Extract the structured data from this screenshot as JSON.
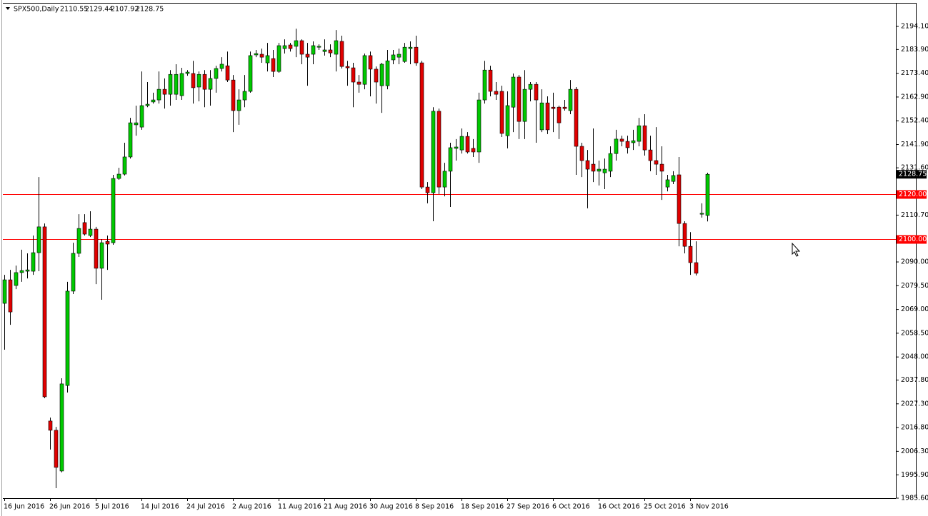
{
  "chart_data": {
    "type": "candlestick",
    "symbol": "SPX500,Daily",
    "categories": [
      "16 Jun 2016",
      null,
      null,
      null,
      null,
      null,
      null,
      null,
      "26 Jun 2016",
      null,
      null,
      null,
      null,
      null,
      null,
      null,
      "5 Jul 2016",
      null,
      null,
      null,
      null,
      null,
      null,
      null,
      "14 Jul 2016",
      null,
      null,
      null,
      null,
      null,
      null,
      null,
      "24 Jul 2016",
      null,
      null,
      null,
      null,
      null,
      null,
      null,
      "2 Aug 2016",
      null,
      null,
      null,
      null,
      null,
      null,
      null,
      "11 Aug 2016",
      null,
      null,
      null,
      null,
      null,
      null,
      null,
      "21 Aug 2016",
      null,
      null,
      null,
      null,
      null,
      null,
      null,
      "30 Aug 2016",
      null,
      null,
      null,
      null,
      null,
      null,
      null,
      "8 Sep 2016",
      null,
      null,
      null,
      null,
      null,
      null,
      null,
      "18 Sep 2016",
      null,
      null,
      null,
      null,
      null,
      null,
      null,
      "27 Sep 2016",
      null,
      null,
      null,
      null,
      null,
      null,
      null,
      "6 Oct 2016",
      null,
      null,
      null,
      null,
      null,
      null,
      null,
      "16 Oct 2016",
      null,
      null,
      null,
      null,
      null,
      null,
      null,
      "25 Oct 2016",
      null,
      null,
      null,
      null,
      null,
      null,
      null,
      "3 Nov 2016",
      null,
      null,
      null
    ],
    "open": [
      2071.7,
      2082.1,
      2079.6,
      2085.3,
      2085.9,
      2085.9,
      2094.1,
      2105.5,
      2019.7,
      2015.6,
      1997.6,
      2035.4,
      2077.1,
      2093.8,
      2107.4,
      2101.7,
      2104.5,
      2087.2,
      2099.1,
      2098.5,
      2126.9,
      2128.8,
      2136.4,
      2150.6,
      2149.6,
      2159.1,
      2160.7,
      2161.6,
      2166.3,
      2164.1,
      2164.1,
      2163.5,
      2173.3,
      2173.3,
      2167.3,
      2172.9,
      2166.3,
      2171.1,
      2175.5,
      2176.7,
      2170.4,
      2156.9,
      2161.6,
      2165.4,
      2181.5,
      2181.8,
      2178.0,
      2179.9,
      2174.2,
      2184.3,
      2185.9,
      2185.3,
      2187.8,
      2181.8,
      2181.8,
      2184.9,
      2183.0,
      2183.7,
      2181.8,
      2187.5,
      2176.4,
      2175.8,
      2169.5,
      2168.5,
      2181.2,
      2175.2,
      2167.9,
      2167.9,
      2179.3,
      2180.5,
      2178.6,
      2184.3,
      2184.9,
      2178.0,
      2123.1,
      2120.6,
      2156.6,
      2123.1,
      2130.1,
      2140.2,
      2139.5,
      2145.5,
      2140.2,
      2138.6,
      2161.6,
      2174.8,
      2165.4,
      2165.4,
      2145.8,
      2158.4,
      2171.7,
      2152.1,
      2166.3,
      2168.5,
      2148.4,
      2160.3,
      2158.4,
      2158.4,
      2158.4,
      2156.9,
      2166.3,
      2141.1,
      2134.8,
      2133.2,
      2130.1,
      2129.4,
      2130.1,
      2137.9,
      2144.3,
      2143.3,
      2142.7,
      2143.3,
      2150.2,
      2139.5,
      2134.8,
      2133.2,
      2123.1,
      2125.6,
      2128.5,
      2107.0,
      2096.9,
      2089.7,
      2111.1,
      2110.55
    ],
    "high": [
      2084.3,
      2086.5,
      2088.4,
      2095.4,
      2093.8,
      2101.7,
      2127.5,
      2107.0,
      2021.2,
      2017.1,
      2038.6,
      2081.2,
      2098.5,
      2111.1,
      2111.1,
      2112.4,
      2105.5,
      2100.1,
      2101.7,
      2128.5,
      2131.6,
      2142.7,
      2153.7,
      2159.1,
      2174.2,
      2169.5,
      2164.8,
      2174.2,
      2171.1,
      2174.8,
      2177.4,
      2175.8,
      2174.8,
      2178.9,
      2174.2,
      2174.8,
      2174.8,
      2176.7,
      2180.5,
      2183.0,
      2172.6,
      2166.3,
      2172.6,
      2183.0,
      2183.7,
      2184.3,
      2186.8,
      2183.7,
      2186.8,
      2188.4,
      2186.8,
      2193.1,
      2188.4,
      2186.8,
      2187.5,
      2186.2,
      2188.4,
      2186.2,
      2192.5,
      2190.0,
      2178.9,
      2178.0,
      2172.6,
      2182.1,
      2183.0,
      2176.4,
      2178.0,
      2183.7,
      2183.7,
      2184.3,
      2186.8,
      2187.5,
      2190.0,
      2178.9,
      2125.3,
      2158.4,
      2157.8,
      2133.8,
      2142.7,
      2144.3,
      2149.0,
      2147.4,
      2144.3,
      2164.8,
      2178.9,
      2176.7,
      2169.5,
      2167.9,
      2165.4,
      2173.3,
      2172.6,
      2174.8,
      2169.5,
      2169.5,
      2166.3,
      2163.2,
      2164.8,
      2159.1,
      2161.6,
      2170.4,
      2167.3,
      2142.7,
      2139.5,
      2149.0,
      2134.8,
      2135.7,
      2141.1,
      2148.4,
      2145.8,
      2145.8,
      2148.4,
      2153.7,
      2155.3,
      2145.8,
      2149.6,
      2141.1,
      2128.5,
      2130.1,
      2136.4,
      2108.0,
      2103.2,
      2099.1,
      2115.9,
      2129.44
    ],
    "low": [
      2051.2,
      2062.2,
      2078.0,
      2081.2,
      2082.7,
      2084.3,
      2085.9,
      2029.8,
      2007.1,
      1990.0,
      1997.0,
      2032.3,
      2075.8,
      2092.2,
      2101.7,
      2101.0,
      2080.2,
      2073.3,
      2086.5,
      2097.6,
      2126.3,
      2128.2,
      2135.7,
      2145.8,
      2148.4,
      2158.4,
      2160.0,
      2160.0,
      2157.8,
      2159.1,
      2161.6,
      2161.6,
      2172.3,
      2160.0,
      2161.0,
      2158.4,
      2159.1,
      2164.8,
      2174.2,
      2169.5,
      2147.4,
      2150.6,
      2158.4,
      2164.8,
      2180.5,
      2178.0,
      2174.2,
      2171.7,
      2173.6,
      2182.1,
      2183.0,
      2180.5,
      2177.4,
      2167.9,
      2177.4,
      2183.7,
      2181.2,
      2180.5,
      2174.2,
      2175.5,
      2167.9,
      2158.4,
      2164.8,
      2166.3,
      2163.2,
      2160.0,
      2155.9,
      2166.3,
      2177.4,
      2177.4,
      2178.0,
      2177.4,
      2176.7,
      2122.2,
      2115.9,
      2108.0,
      2120.0,
      2119.0,
      2114.3,
      2134.8,
      2137.9,
      2137.9,
      2136.4,
      2133.8,
      2160.0,
      2163.2,
      2161.6,
      2145.2,
      2140.2,
      2147.4,
      2144.3,
      2144.3,
      2161.0,
      2142.7,
      2147.4,
      2146.5,
      2147.4,
      2144.3,
      2156.9,
      2155.3,
      2128.5,
      2127.5,
      2113.7,
      2125.3,
      2123.8,
      2122.2,
      2127.5,
      2134.8,
      2141.1,
      2137.9,
      2139.5,
      2141.1,
      2137.0,
      2130.1,
      2128.5,
      2117.4,
      2121.2,
      2124.4,
      2096.9,
      2093.8,
      2084.3,
      2084.0,
      2109.6,
      2107.92
    ],
    "close": [
      2082.1,
      2067.9,
      2085.3,
      2086.2,
      2086.5,
      2094.1,
      2105.5,
      2030.4,
      2015.6,
      1999.2,
      2036.1,
      2077.1,
      2093.8,
      2104.8,
      2102.3,
      2104.5,
      2087.2,
      2098.5,
      2097.9,
      2126.9,
      2128.8,
      2136.4,
      2151.5,
      2151.5,
      2159.1,
      2159.7,
      2161.6,
      2166.3,
      2164.1,
      2172.9,
      2172.9,
      2173.3,
      2173.9,
      2167.0,
      2172.9,
      2166.3,
      2171.1,
      2175.5,
      2177.4,
      2170.4,
      2156.9,
      2161.6,
      2165.4,
      2181.2,
      2182.1,
      2180.5,
      2181.2,
      2174.2,
      2185.6,
      2185.6,
      2184.3,
      2187.8,
      2181.8,
      2180.5,
      2185.6,
      2185.3,
      2183.7,
      2182.4,
      2187.8,
      2176.4,
      2175.8,
      2169.5,
      2168.5,
      2181.2,
      2175.2,
      2169.5,
      2177.4,
      2178.9,
      2181.5,
      2181.8,
      2184.9,
      2184.9,
      2178.0,
      2123.1,
      2120.6,
      2156.6,
      2123.1,
      2130.1,
      2140.5,
      2140.8,
      2145.5,
      2138.6,
      2138.6,
      2161.6,
      2174.8,
      2165.4,
      2164.1,
      2146.8,
      2159.1,
      2171.7,
      2152.1,
      2166.3,
      2168.5,
      2161.6,
      2160.3,
      2148.4,
      2157.8,
      2151.5,
      2157.8,
      2166.3,
      2141.1,
      2134.8,
      2131.0,
      2130.1,
      2131.0,
      2131.0,
      2137.9,
      2144.3,
      2143.3,
      2140.5,
      2143.6,
      2150.2,
      2139.5,
      2134.8,
      2133.2,
      2130.1,
      2126.3,
      2128.2,
      2107.0,
      2096.9,
      2089.7,
      2085.0,
      2111.5,
      2128.75
    ],
    "up_color": "#00c800",
    "down_color": "#e00000",
    "ylim": [
      1985.6,
      2204.2
    ],
    "yticks": [
      {
        "value": 2194.1,
        "label": "2194.10"
      },
      {
        "value": 2183.9,
        "label": "2183.90"
      },
      {
        "value": 2173.4,
        "label": "2173.40"
      },
      {
        "value": 2162.9,
        "label": "2162.90"
      },
      {
        "value": 2152.4,
        "label": "2152.40"
      },
      {
        "value": 2141.9,
        "label": "2141.90"
      },
      {
        "value": 2131.6,
        "label": "2131.60"
      },
      {
        "value": 2110.7,
        "label": "2110.70"
      },
      {
        "value": 2090,
        "label": "2090.00"
      },
      {
        "value": 2079.5,
        "label": "2079.50"
      },
      {
        "value": 2069,
        "label": "2069.00"
      },
      {
        "value": 2058.5,
        "label": "2058.50"
      },
      {
        "value": 2048,
        "label": "2048.00"
      },
      {
        "value": 2037.8,
        "label": "2037.80"
      },
      {
        "value": 2027.3,
        "label": "2027.30"
      },
      {
        "value": 2016.8,
        "label": "2016.80"
      },
      {
        "value": 2006.3,
        "label": "2006.30"
      },
      {
        "value": 1995.9,
        "label": "1995.90"
      },
      {
        "value": 1985.6,
        "label": "1985.60"
      }
    ],
    "hlines": [
      {
        "value": 2120,
        "label": "2120.00",
        "color": "#ff0000"
      },
      {
        "value": 2100,
        "label": "2100.00",
        "color": "#ff0000"
      }
    ]
  }
}
